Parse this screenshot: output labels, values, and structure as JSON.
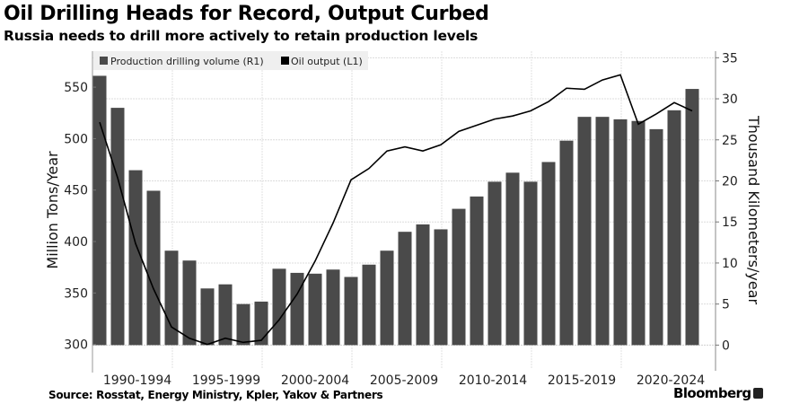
{
  "title": "Oil Drilling Heads for Record, Output Curbed",
  "subtitle": "Russia needs to drill more actively to retain production levels",
  "source": "Source: Rosstat, Energy Ministry, Kpler, Yakov & Partners",
  "logo": "Bloomberg",
  "chart_data": {
    "type": "bar+line",
    "x_years": [
      1990,
      1991,
      1992,
      1993,
      1994,
      1995,
      1996,
      1997,
      1998,
      1999,
      2000,
      2001,
      2002,
      2003,
      2004,
      2005,
      2006,
      2007,
      2008,
      2009,
      2010,
      2011,
      2012,
      2013,
      2014,
      2015,
      2016,
      2017,
      2018,
      2019,
      2020,
      2021,
      2022,
      2023
    ],
    "x_tick_labels": [
      "1990-1994",
      "1995-1999",
      "2000-2004",
      "2005-2009",
      "2010-2014",
      "2015-2019",
      "2020-2024"
    ],
    "series": [
      {
        "name": "Production drilling volume (R1)",
        "kind": "bar",
        "axis": "right",
        "color": "#4a4a4a",
        "values": [
          32.8,
          28.9,
          21.3,
          18.8,
          11.5,
          10.3,
          6.9,
          7.4,
          5.0,
          5.3,
          9.3,
          8.8,
          8.7,
          9.2,
          8.3,
          9.8,
          11.5,
          13.8,
          14.7,
          14.1,
          16.6,
          18.1,
          19.9,
          21.0,
          19.9,
          22.3,
          24.9,
          27.8,
          27.8,
          27.5,
          27.3,
          26.3,
          28.6,
          31.2
        ]
      },
      {
        "name": "Oil output (L1)",
        "kind": "line",
        "axis": "left",
        "color": "#000000",
        "values": [
          516,
          462,
          398,
          354,
          317,
          306,
          300,
          306,
          302,
          304,
          324,
          349,
          381,
          418,
          460,
          471,
          488,
          492,
          488,
          494,
          507,
          513,
          519,
          522,
          527,
          536,
          549,
          548,
          557,
          562,
          514,
          524,
          535,
          527
        ]
      }
    ],
    "left_axis": {
      "label": "Million Tons/Year",
      "ticks": [
        300,
        350,
        400,
        450,
        500,
        550
      ],
      "range": [
        277,
        585
      ]
    },
    "right_axis": {
      "label": "Thousand Kilometers/year",
      "ticks": [
        0,
        5,
        10,
        15,
        20,
        25,
        30,
        35
      ],
      "range": [
        -2.8,
        35.8
      ]
    },
    "grid": true,
    "legend_position": "top-left"
  }
}
